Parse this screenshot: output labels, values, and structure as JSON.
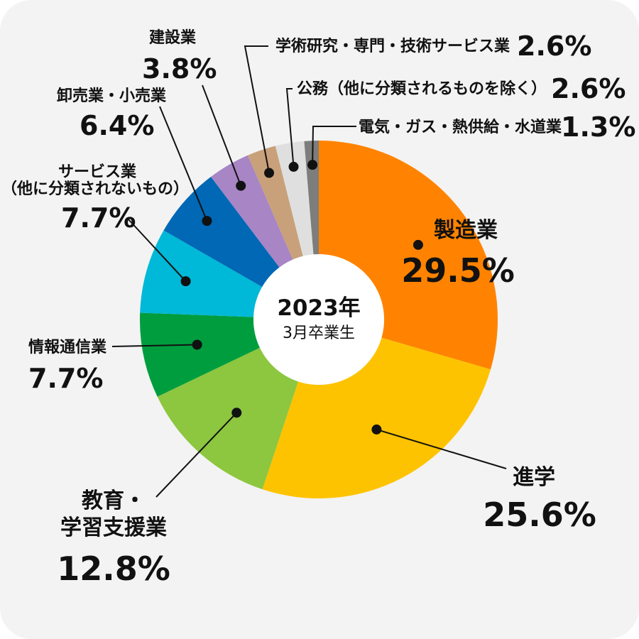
{
  "chart_data": {
    "type": "pie",
    "center_label": {
      "year": "2023年",
      "subtitle": "3月卒業生"
    },
    "categories": [
      "製造業",
      "進学",
      "教育・学習支援業",
      "情報通信業",
      "サービス業（他に分類されないもの）",
      "卸売業・小売業",
      "建設業",
      "学術研究・専門・技術サービス業",
      "公務（他に分類されるものを除く）",
      "電気・ガス・熱供給・水道業"
    ],
    "values": [
      29.5,
      25.6,
      12.8,
      7.7,
      7.7,
      6.4,
      3.8,
      2.6,
      2.6,
      1.3
    ],
    "value_labels": [
      "29.5%",
      "25.6%",
      "12.8%",
      "7.7%",
      "7.7%",
      "6.4%",
      "3.8%",
      "2.6%",
      "2.6%",
      "1.3%"
    ],
    "colors": [
      "#ff8300",
      "#fdc300",
      "#8dc63f",
      "#009d3f",
      "#00b8d7",
      "#0068b5",
      "#a885c5",
      "#c8a07a",
      "#dfdfdf",
      "#7d7d7d"
    ],
    "label_lines": [
      [
        "製造業"
      ],
      [
        "進学"
      ],
      [
        "教育・",
        "学習支援業"
      ],
      [
        "情報通信業"
      ],
      [
        "サービス業",
        "（他に分類されないもの）"
      ],
      [
        "卸売業・小売業"
      ],
      [
        "建設業"
      ],
      [
        "学術研究・専門・技術サービス業"
      ],
      [
        "公務（他に分類されるものを除く）"
      ],
      [
        "電気・ガス・熱供給・水道業"
      ]
    ]
  }
}
